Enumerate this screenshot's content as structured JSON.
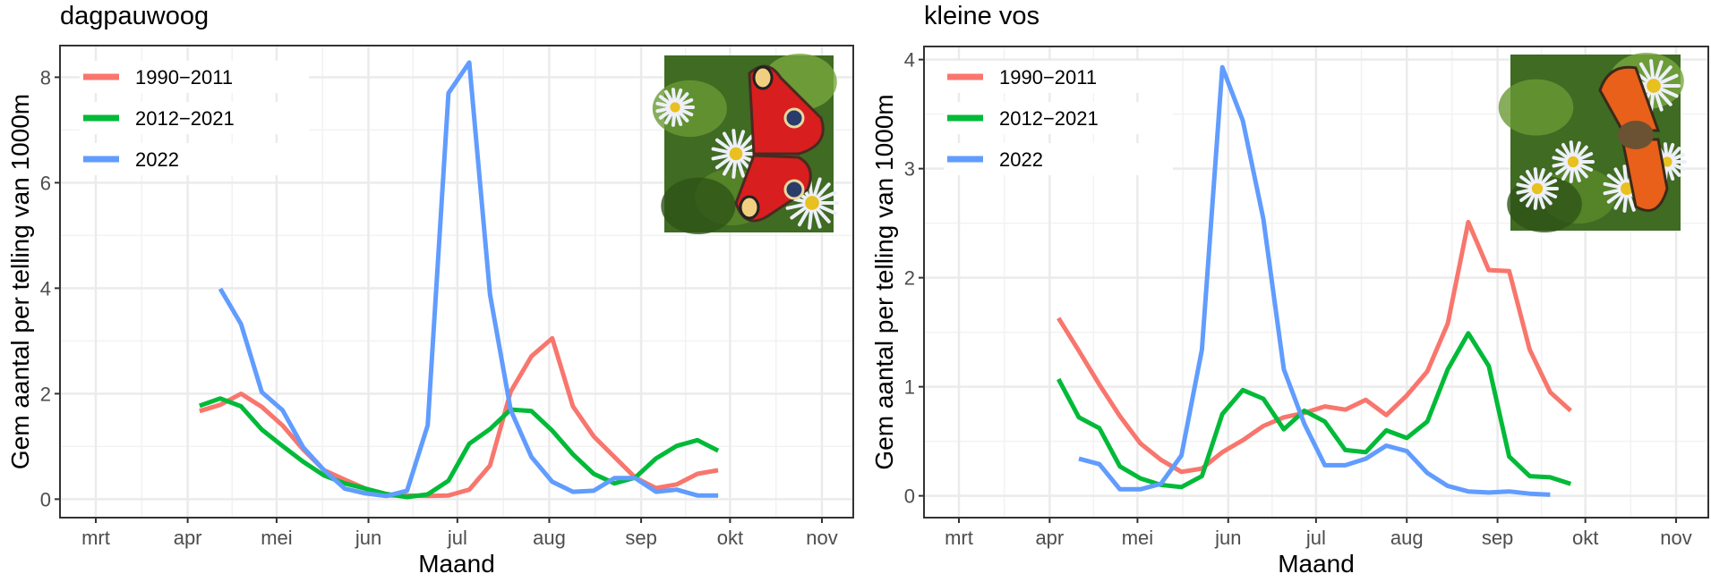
{
  "chart_data": [
    {
      "type": "line",
      "title": "dagpauwoog",
      "xlabel": "Maand",
      "ylabel": "Gem aantal per telling van 1000m",
      "x_ticks": [
        "mrt",
        "apr",
        "mei",
        "jun",
        "jul",
        "aug",
        "sep",
        "okt",
        "nov"
      ],
      "y_ticks": [
        0,
        2,
        4,
        6,
        8
      ],
      "ylim": [
        -0.35,
        8.6
      ],
      "grid": true,
      "legend_position": "top-left",
      "photo": "peacock-butterfly-photo",
      "series": [
        {
          "name": "1990−2011",
          "color": "#F8766D",
          "x": [
            "04-05",
            "04-12",
            "04-19",
            "04-26",
            "05-03",
            "05-10",
            "05-17",
            "05-24",
            "05-31",
            "06-07",
            "06-14",
            "06-21",
            "06-28",
            "07-05",
            "07-12",
            "07-19",
            "07-26",
            "08-02",
            "08-09",
            "08-16",
            "08-23",
            "08-30",
            "09-06",
            "09-13",
            "09-20",
            "09-27"
          ],
          "y": [
            1.67,
            1.79,
            2.0,
            1.75,
            1.4,
            0.94,
            0.55,
            0.37,
            0.2,
            0.07,
            0.07,
            0.06,
            0.07,
            0.18,
            0.64,
            2.04,
            2.71,
            3.05,
            1.76,
            1.19,
            0.8,
            0.41,
            0.21,
            0.28,
            0.48,
            0.55
          ]
        },
        {
          "name": "2012−2021",
          "color": "#00BA38",
          "x": [
            "04-05",
            "04-12",
            "04-19",
            "04-26",
            "05-03",
            "05-10",
            "05-17",
            "05-24",
            "05-31",
            "06-07",
            "06-14",
            "06-21",
            "06-28",
            "07-05",
            "07-12",
            "07-19",
            "07-26",
            "08-02",
            "08-09",
            "08-16",
            "08-23",
            "08-30",
            "09-06",
            "09-13",
            "09-20",
            "09-27"
          ],
          "y": [
            1.77,
            1.91,
            1.76,
            1.32,
            1.01,
            0.71,
            0.45,
            0.3,
            0.2,
            0.1,
            0.04,
            0.09,
            0.35,
            1.05,
            1.33,
            1.7,
            1.67,
            1.3,
            0.85,
            0.48,
            0.3,
            0.41,
            0.77,
            1.01,
            1.12,
            0.92
          ]
        },
        {
          "name": "2022",
          "color": "#619CFF",
          "x": [
            "04-12",
            "04-19",
            "04-26",
            "05-03",
            "05-10",
            "05-17",
            "05-24",
            "05-31",
            "06-07",
            "06-14",
            "06-21",
            "06-28",
            "07-05",
            "07-12",
            "07-19",
            "07-26",
            "08-02",
            "08-09",
            "08-16",
            "08-23",
            "08-30",
            "09-06",
            "09-13",
            "09-20",
            "09-27"
          ],
          "y": [
            3.99,
            3.32,
            2.03,
            1.69,
            0.98,
            0.55,
            0.2,
            0.11,
            0.06,
            0.16,
            1.4,
            7.7,
            8.28,
            3.88,
            1.69,
            0.8,
            0.33,
            0.14,
            0.16,
            0.4,
            0.4,
            0.14,
            0.18,
            0.07,
            0.07
          ]
        }
      ]
    },
    {
      "type": "line",
      "title": "kleine vos",
      "xlabel": "Maand",
      "ylabel": "Gem aantal per telling van 1000m",
      "x_ticks": [
        "mrt",
        "apr",
        "mei",
        "jun",
        "jul",
        "aug",
        "sep",
        "okt",
        "nov"
      ],
      "y_ticks": [
        0,
        1,
        2,
        3,
        4
      ],
      "ylim": [
        -0.2,
        4.12
      ],
      "grid": true,
      "legend_position": "top-left",
      "photo": "small-tortoiseshell-butterfly-photo",
      "series": [
        {
          "name": "1990−2011",
          "color": "#F8766D",
          "x": [
            "04-04",
            "04-11",
            "04-18",
            "04-25",
            "05-02",
            "05-09",
            "05-16",
            "05-23",
            "05-30",
            "06-06",
            "06-13",
            "06-20",
            "06-27",
            "07-04",
            "07-11",
            "07-18",
            "07-25",
            "08-01",
            "08-08",
            "08-15",
            "08-22",
            "08-29",
            "09-05",
            "09-12",
            "09-19",
            "09-26"
          ],
          "y": [
            1.63,
            1.33,
            1.02,
            0.73,
            0.48,
            0.33,
            0.22,
            0.25,
            0.4,
            0.51,
            0.64,
            0.72,
            0.76,
            0.82,
            0.79,
            0.88,
            0.74,
            0.92,
            1.14,
            1.58,
            2.51,
            2.07,
            2.06,
            1.34,
            0.95,
            0.78
          ]
        },
        {
          "name": "2012−2021",
          "color": "#00BA38",
          "x": [
            "04-04",
            "04-11",
            "04-18",
            "04-25",
            "05-02",
            "05-09",
            "05-16",
            "05-23",
            "05-30",
            "06-06",
            "06-13",
            "06-20",
            "06-27",
            "07-04",
            "07-11",
            "07-18",
            "07-25",
            "08-01",
            "08-08",
            "08-15",
            "08-22",
            "08-29",
            "09-05",
            "09-12",
            "09-19",
            "09-26"
          ],
          "y": [
            1.07,
            0.72,
            0.62,
            0.27,
            0.16,
            0.1,
            0.08,
            0.18,
            0.75,
            0.97,
            0.89,
            0.61,
            0.78,
            0.68,
            0.42,
            0.4,
            0.6,
            0.53,
            0.68,
            1.16,
            1.49,
            1.19,
            0.36,
            0.18,
            0.17,
            0.11
          ]
        },
        {
          "name": "2022",
          "color": "#619CFF",
          "x": [
            "04-11",
            "04-18",
            "04-25",
            "05-02",
            "05-09",
            "05-16",
            "05-23",
            "05-30",
            "06-06",
            "06-13",
            "06-20",
            "06-27",
            "07-04",
            "07-11",
            "07-18",
            "07-25",
            "08-01",
            "08-08",
            "08-15",
            "08-22",
            "08-29",
            "09-05",
            "09-12",
            "09-19"
          ],
          "y": [
            0.34,
            0.29,
            0.06,
            0.06,
            0.11,
            0.37,
            1.34,
            3.93,
            3.44,
            2.54,
            1.16,
            0.66,
            0.28,
            0.28,
            0.34,
            0.46,
            0.41,
            0.21,
            0.09,
            0.04,
            0.03,
            0.04,
            0.02,
            0.01
          ]
        }
      ]
    }
  ]
}
